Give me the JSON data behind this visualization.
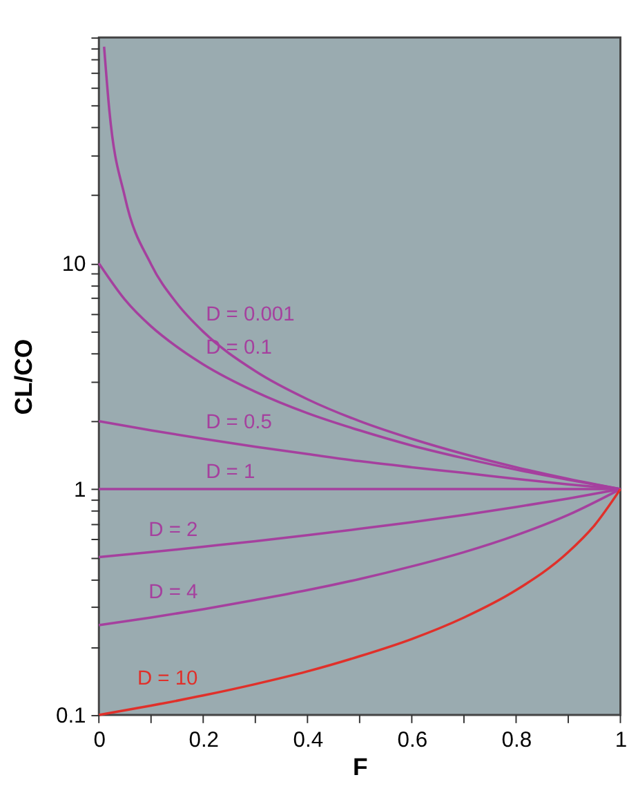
{
  "chart_data": {
    "type": "line",
    "xlabel": "F",
    "ylabel": "CL/CO",
    "log": true,
    "grid": false,
    "legend": false,
    "marker": "none",
    "line_style": "solid",
    "xlim": [
      0,
      1
    ],
    "xticks": [
      0,
      {
        "value": 0.1,
        "label": null
      },
      0.2,
      {
        "value": 0.3,
        "label": null
      },
      0.4,
      {
        "value": 0.5,
        "label": null
      },
      0.6,
      {
        "value": 0.7,
        "label": null
      },
      0.8,
      {
        "value": 0.9,
        "label": null
      },
      1
    ],
    "ylim": [
      0.1,
      100
    ],
    "yticks": [
      0.1,
      {
        "value": 0.2,
        "label": null
      },
      {
        "value": 0.3,
        "label": null
      },
      {
        "value": 0.4,
        "label": null
      },
      {
        "value": 0.5,
        "label": null
      },
      {
        "value": 0.6,
        "label": null
      },
      {
        "value": 0.7,
        "label": null
      },
      {
        "value": 0.8,
        "label": null
      },
      {
        "value": 0.9,
        "label": null
      },
      1,
      {
        "value": 2,
        "label": null
      },
      {
        "value": 3,
        "label": null
      },
      {
        "value": 4,
        "label": null
      },
      {
        "value": 5,
        "label": null
      },
      {
        "value": 6,
        "label": null
      },
      {
        "value": 7,
        "label": null
      },
      {
        "value": 8,
        "label": null
      },
      {
        "value": 9,
        "label": null
      },
      10,
      {
        "value": 20,
        "label": null
      },
      {
        "value": 30,
        "label": null
      },
      {
        "value": 40,
        "label": null
      },
      {
        "value": 50,
        "label": null
      },
      {
        "value": 60,
        "label": null
      },
      {
        "value": 70,
        "label": null
      },
      {
        "value": 80,
        "label": null
      },
      {
        "value": 90,
        "label": null
      },
      {
        "value": 100,
        "label": null
      }
    ],
    "series": [
      {
        "name": "D = 0.001",
        "color": "#a5409e",
        "x": [
          0.01,
          0.02,
          0.05,
          0.1,
          0.15,
          0.2,
          0.3,
          0.4,
          0.5,
          0.6,
          0.7,
          0.8,
          0.9,
          1
        ],
        "values": [
          91,
          47.7,
          19.6,
          9.91,
          6.63,
          4.98,
          3.33,
          2.5,
          2.0,
          1.67,
          1.43,
          1.25,
          1.11,
          1
        ]
      },
      {
        "name": "D = 0.1",
        "color": "#a5409e",
        "x": [
          0,
          0.05,
          0.1,
          0.15,
          0.2,
          0.3,
          0.4,
          0.5,
          0.6,
          0.7,
          0.8,
          0.9,
          1
        ],
        "values": [
          10,
          6.9,
          5.26,
          4.26,
          3.57,
          2.7,
          2.17,
          1.82,
          1.56,
          1.37,
          1.22,
          1.1,
          1
        ]
      },
      {
        "name": "D = 0.5",
        "color": "#a5409e",
        "x": [
          0,
          0.1,
          0.2,
          0.3,
          0.4,
          0.5,
          0.6,
          0.7,
          0.8,
          0.9,
          1
        ],
        "values": [
          2,
          1.82,
          1.67,
          1.54,
          1.43,
          1.33,
          1.25,
          1.18,
          1.11,
          1.05,
          1
        ]
      },
      {
        "name": "D = 1",
        "color": "#a5409e",
        "x": [
          0,
          1
        ],
        "values": [
          1,
          1
        ]
      },
      {
        "name": "D = 2",
        "color": "#a5409e",
        "x": [
          0,
          0.1,
          0.2,
          0.3,
          0.4,
          0.5,
          0.6,
          0.7,
          0.8,
          0.9,
          1
        ],
        "values": [
          0.5,
          0.526,
          0.556,
          0.588,
          0.625,
          0.667,
          0.714,
          0.769,
          0.833,
          0.909,
          1
        ]
      },
      {
        "name": "D = 4",
        "color": "#a5409e",
        "x": [
          0,
          0.1,
          0.2,
          0.3,
          0.4,
          0.5,
          0.6,
          0.7,
          0.8,
          0.9,
          1
        ],
        "values": [
          0.25,
          0.27,
          0.294,
          0.323,
          0.357,
          0.4,
          0.455,
          0.526,
          0.625,
          0.769,
          1
        ]
      },
      {
        "name": "D = 10",
        "color": "#e0302a",
        "x": [
          0,
          0.1,
          0.2,
          0.3,
          0.4,
          0.5,
          0.6,
          0.7,
          0.8,
          0.9,
          0.95,
          1
        ],
        "values": [
          0.1,
          0.11,
          0.122,
          0.137,
          0.156,
          0.182,
          0.217,
          0.27,
          0.357,
          0.526,
          0.69,
          1
        ]
      }
    ]
  }
}
